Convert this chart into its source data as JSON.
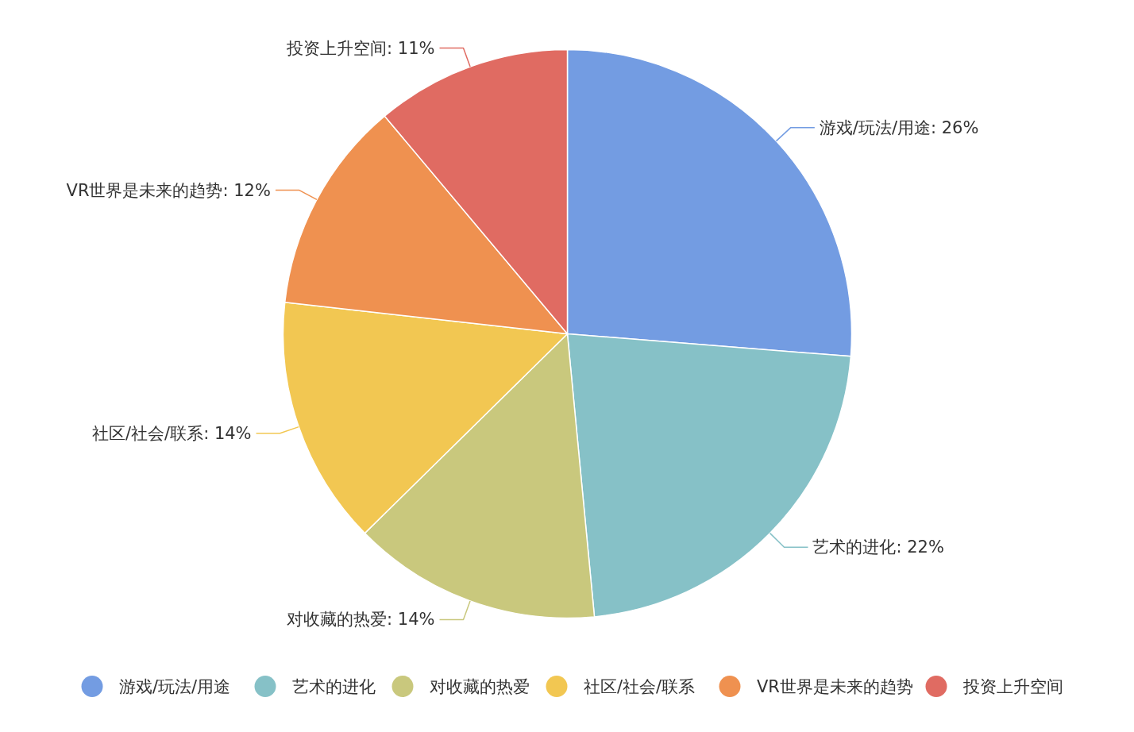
{
  "chart_data": {
    "type": "pie",
    "categories": [
      "游戏/玩法/用途",
      "艺术的进化",
      "对收藏的热爱",
      "社区/社会/联系",
      "VR世界是未来的趋势",
      "投资上升空间"
    ],
    "values": [
      26,
      22,
      14,
      14,
      12,
      11
    ],
    "value_labels": [
      "游戏/玩法/用途: 26%",
      "艺术的进化: 22%",
      "对收藏的热爱: 14%",
      "社区/社会/联系: 14%",
      "VR世界是未来的趋势: 12%",
      "投资上升空间: 11%"
    ],
    "colors": [
      "#739ce2",
      "#86c1c7",
      "#c9c87d",
      "#f2c752",
      "#ef9150",
      "#e06b62"
    ],
    "legend": "bottom"
  }
}
